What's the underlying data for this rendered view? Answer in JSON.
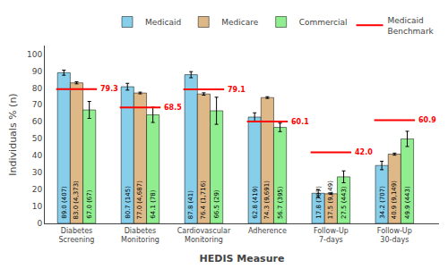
{
  "chart_data": {
    "type": "bar",
    "categories": [
      "Diabetes\nScreening",
      "Diabetes\nMonitoring",
      "Cardiovascular\nMonitoring",
      "Adherence",
      "Follow-Up\n7-days",
      "Follow-Up\n30-days"
    ],
    "xlabel": "HEDIS Measure",
    "ylabel": "Individuals % (n)",
    "series": [
      {
        "name": "Medicaid",
        "color": "#87CEEB",
        "values": [
          89.0,
          80.7,
          87.8,
          62.8,
          17.8,
          34.2
        ],
        "errors": [
          1.5,
          2.0,
          1.8,
          2.5,
          2.2,
          2.5
        ],
        "value_labels": [
          "89.0 (407)",
          "80.7 (145)",
          "87.8 (41)",
          "62.8 (419)",
          "17.8 (707)",
          "34.2 (707)"
        ]
      },
      {
        "name": "Medicare",
        "color": "#DEB887",
        "values": [
          83.0,
          77.0,
          76.4,
          74.3,
          17.5,
          40.9
        ],
        "errors": [
          0.6,
          0.5,
          0.7,
          0.5,
          0.4,
          0.6
        ],
        "value_labels": [
          "83.0 (4,373)",
          "77.0 (4,687)",
          "76.4 (1,716)",
          "74.3 (9,691)",
          "17.5 (9,149)",
          "40.9 (9,149)"
        ]
      },
      {
        "name": "Commercial",
        "color": "#90EE90",
        "values": [
          67.0,
          64.1,
          66.5,
          56.7,
          27.5,
          49.9
        ],
        "errors": [
          5.0,
          4.5,
          8.0,
          2.5,
          3.5,
          4.5
        ],
        "value_labels": [
          "67.0 (67)",
          "64.1 (78)",
          "66.5 (29)",
          "56.7 (395)",
          "27.5 (443)",
          "49.9 (443)"
        ]
      },
      {
        "name": "Medicaid\nBenchmark",
        "type": "line",
        "color": "#FF0000",
        "values": [
          79.3,
          68.5,
          79.1,
          60.1,
          42.0,
          60.9
        ],
        "value_labels": [
          "79.3",
          "68.5",
          "79.1",
          "60.1",
          "42.0",
          "60.9"
        ]
      }
    ],
    "ylim": [
      0,
      105
    ],
    "yticks": [
      0,
      10,
      20,
      30,
      40,
      50,
      60,
      70,
      80,
      90,
      100
    ],
    "grid": false,
    "legend": "upper right",
    "data_labels": true
  }
}
